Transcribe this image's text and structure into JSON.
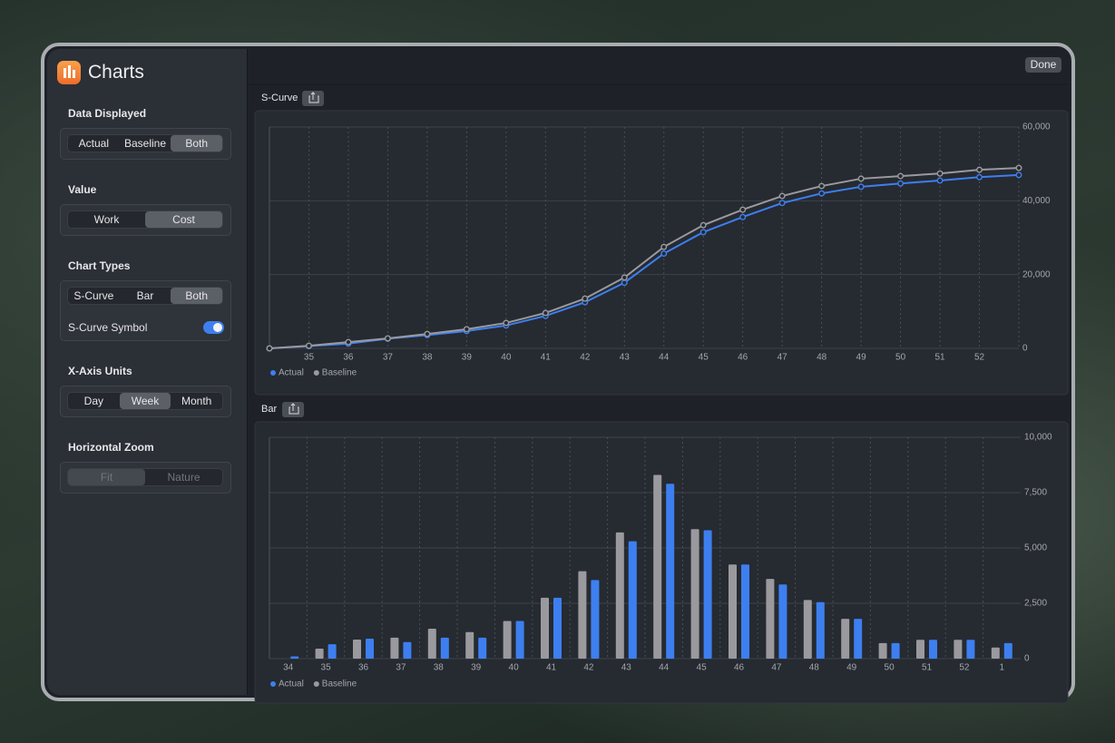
{
  "sidebar": {
    "title": "Charts",
    "sections": [
      {
        "label": "Data Displayed",
        "options": [
          "Actual",
          "Baseline",
          "Both"
        ],
        "selected": 2
      },
      {
        "label": "Value",
        "options": [
          "Work",
          "Cost"
        ],
        "selected": 1
      },
      {
        "label": "Chart Types",
        "options": [
          "S-Curve",
          "Bar",
          "Both"
        ],
        "selected": 2,
        "toggle": {
          "label": "S-Curve Symbol",
          "on": true
        }
      },
      {
        "label": "X-Axis Units",
        "options": [
          "Day",
          "Week",
          "Month"
        ],
        "selected": 1
      },
      {
        "label": "Horizontal Zoom",
        "options": [
          "Fit",
          "Nature"
        ],
        "selected": 0,
        "disabled": true
      }
    ]
  },
  "toolbar": {
    "done": "Done"
  },
  "chart_data": [
    {
      "type": "line",
      "title": "S-Curve",
      "grid": true,
      "legend": "bottom-left",
      "categories": [
        null,
        "35",
        "36",
        "37",
        "38",
        "39",
        "40",
        "41",
        "42",
        "43",
        "44",
        "45",
        "46",
        "47",
        "48",
        "49",
        "50",
        "51",
        "52",
        null
      ],
      "series": [
        {
          "name": "Actual",
          "color": "#3d7ff0",
          "values": [
            0,
            600,
            1300,
            2600,
            3600,
            4700,
            6200,
            8800,
            12500,
            17800,
            25700,
            31500,
            35600,
            39400,
            42000,
            43800,
            44700,
            45500,
            46400,
            47000
          ]
        },
        {
          "name": "Baseline",
          "color": "#9a9a9e",
          "values": [
            0,
            700,
            1700,
            2700,
            3900,
            5200,
            6900,
            9600,
            13500,
            19200,
            27500,
            33400,
            37600,
            41300,
            44000,
            46000,
            46700,
            47400,
            48400,
            48900
          ]
        }
      ],
      "ylim": [
        0,
        60000
      ],
      "yticks": [
        0,
        {
          "value": 20000,
          "label": "20,000"
        },
        {
          "value": 40000,
          "label": "40,000"
        },
        {
          "value": 60000,
          "label": "60,000"
        }
      ]
    },
    {
      "type": "bar",
      "title": "Bar",
      "grid": true,
      "legend": "bottom-left",
      "categories": [
        "34",
        "35",
        "36",
        "37",
        "38",
        "39",
        "40",
        "41",
        "42",
        "43",
        "44",
        "45",
        "46",
        "47",
        "48",
        "49",
        "50",
        "51",
        "52",
        "1"
      ],
      "series": [
        {
          "name": "Actual",
          "color": "#3d7ff0",
          "values": [
            100,
            650,
            900,
            750,
            950,
            950,
            1700,
            2750,
            3550,
            5300,
            7900,
            5800,
            4250,
            3350,
            2550,
            1800,
            700,
            850,
            850,
            700
          ]
        },
        {
          "name": "Baseline",
          "color": "#9a9a9e",
          "values": [
            null,
            450,
            860,
            950,
            1350,
            1200,
            1700,
            2750,
            3950,
            5700,
            8300,
            5850,
            4250,
            3600,
            2650,
            1800,
            700,
            850,
            850,
            500
          ]
        }
      ],
      "ylim": [
        0,
        10000
      ],
      "yticks": [
        0,
        {
          "value": 2500,
          "label": "2,500"
        },
        {
          "value": 5000,
          "label": "5,000"
        },
        {
          "value": 7500,
          "label": "7,500"
        },
        {
          "value": 10000,
          "label": "10,000"
        }
      ]
    }
  ]
}
